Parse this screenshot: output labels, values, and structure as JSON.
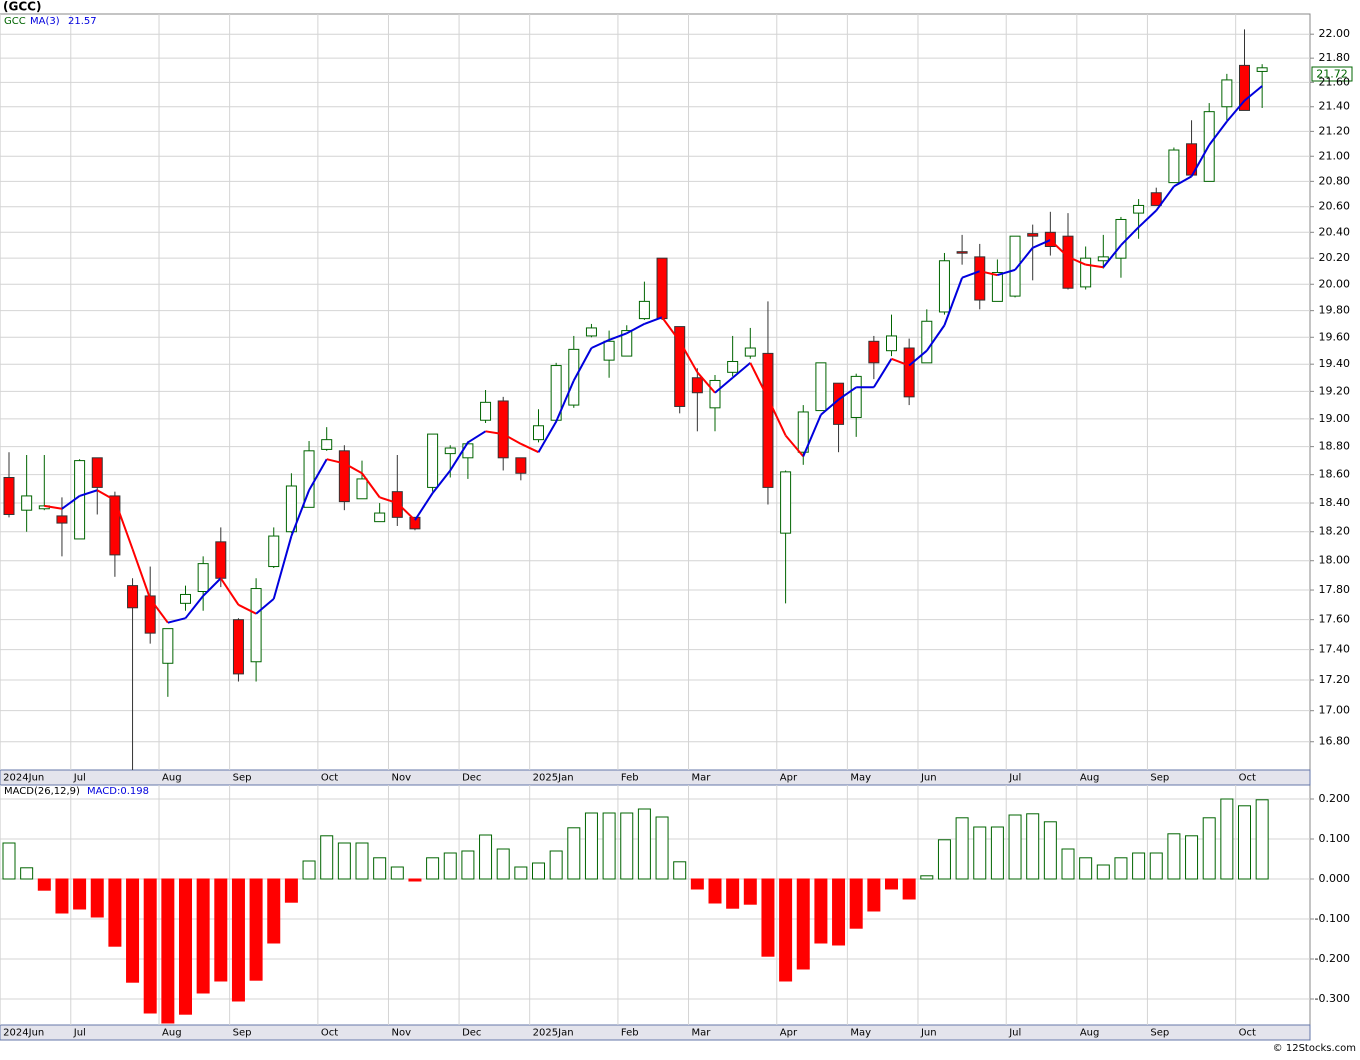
{
  "title": "(GCC)",
  "footer": "© 12Stocks.com",
  "chart_data": [
    {
      "type": "candlestick",
      "symbol": "GCC",
      "log_scale": true,
      "grid": true,
      "up_color": "#006400",
      "down_color": "#ff0000",
      "ylim": [
        16.62,
        22.17
      ],
      "yticks": [
        {
          "value": 16.8,
          "label": "16.80"
        },
        {
          "value": 17.0,
          "label": "17.00"
        },
        {
          "value": 17.2,
          "label": "17.20"
        },
        {
          "value": 17.4,
          "label": "17.40"
        },
        {
          "value": 17.6,
          "label": "17.60"
        },
        {
          "value": 17.8,
          "label": "17.80"
        },
        {
          "value": 18.0,
          "label": "18.00"
        },
        {
          "value": 18.2,
          "label": "18.20"
        },
        {
          "value": 18.4,
          "label": "18.40"
        },
        {
          "value": 18.6,
          "label": "18.60"
        },
        {
          "value": 18.8,
          "label": "18.80"
        },
        {
          "value": 19.0,
          "label": "19.00"
        },
        {
          "value": 19.2,
          "label": "19.20"
        },
        {
          "value": 19.4,
          "label": "19.40"
        },
        {
          "value": 19.6,
          "label": "19.60"
        },
        {
          "value": 19.8,
          "label": "19.80"
        },
        {
          "value": 20.0,
          "label": "20.00"
        },
        {
          "value": 20.2,
          "label": "20.20"
        },
        {
          "value": 20.4,
          "label": "20.40"
        },
        {
          "value": 20.6,
          "label": "20.60"
        },
        {
          "value": 20.8,
          "label": "20.80"
        },
        {
          "value": 21.0,
          "label": "21.00"
        },
        {
          "value": 21.2,
          "label": "21.20"
        },
        {
          "value": 21.4,
          "label": "21.40"
        },
        {
          "value": 21.6,
          "label": "21.60"
        },
        {
          "value": 21.8,
          "label": "21.80"
        },
        {
          "value": 22.0,
          "label": "22.00"
        }
      ],
      "xticks": [
        {
          "value": 0,
          "label": "2024Jun"
        },
        {
          "value": 4,
          "label": "Jul"
        },
        {
          "value": 9,
          "label": "Aug"
        },
        {
          "value": 13,
          "label": "Sep"
        },
        {
          "value": 18,
          "label": "Oct"
        },
        {
          "value": 22,
          "label": "Nov"
        },
        {
          "value": 26,
          "label": "Dec"
        },
        {
          "value": 30,
          "label": "2025Jan"
        },
        {
          "value": 35,
          "label": "Feb"
        },
        {
          "value": 39,
          "label": "Mar"
        },
        {
          "value": 44,
          "label": "Apr"
        },
        {
          "value": 48,
          "label": "May"
        },
        {
          "value": 52,
          "label": "Jun"
        },
        {
          "value": 57,
          "label": "Jul"
        },
        {
          "value": 61,
          "label": "Aug"
        },
        {
          "value": 65,
          "label": "Sep"
        },
        {
          "value": 70,
          "label": "Oct"
        }
      ],
      "open": [
        18.58,
        18.35,
        18.36,
        18.31,
        18.15,
        18.72,
        18.45,
        17.83,
        17.76,
        17.31,
        17.71,
        17.79,
        18.13,
        17.6,
        17.32,
        17.96,
        18.2,
        18.37,
        18.78,
        18.77,
        18.43,
        18.27,
        18.48,
        18.3,
        18.51,
        18.75,
        18.72,
        18.99,
        19.13,
        18.72,
        18.85,
        18.99,
        19.1,
        19.61,
        19.43,
        19.46,
        19.74,
        20.2,
        19.68,
        19.3,
        19.08,
        19.34,
        19.46,
        19.48,
        18.19,
        18.76,
        19.06,
        19.26,
        19.01,
        19.57,
        19.5,
        19.52,
        19.41,
        19.79,
        20.25,
        20.21,
        19.87,
        19.91,
        20.39,
        20.4,
        20.37,
        19.98,
        20.18,
        20.2,
        20.55,
        20.71,
        20.79,
        21.1,
        20.8,
        21.4,
        21.74,
        21.69
      ],
      "high": [
        18.76,
        18.74,
        18.74,
        18.44,
        18.71,
        18.72,
        18.48,
        17.88,
        17.96,
        17.54,
        17.83,
        18.03,
        18.23,
        17.61,
        17.88,
        18.23,
        18.61,
        18.84,
        18.94,
        18.81,
        18.7,
        18.4,
        18.74,
        18.3,
        18.89,
        18.81,
        18.84,
        19.21,
        19.16,
        18.72,
        19.07,
        19.41,
        19.61,
        19.7,
        19.65,
        19.69,
        20.02,
        20.2,
        19.68,
        19.37,
        19.32,
        19.61,
        19.67,
        19.87,
        18.63,
        19.1,
        19.41,
        19.26,
        19.33,
        19.61,
        19.77,
        19.59,
        19.81,
        20.24,
        20.38,
        20.31,
        20.19,
        20.37,
        20.46,
        20.56,
        20.55,
        20.29,
        20.38,
        20.52,
        20.66,
        20.75,
        21.07,
        21.29,
        21.43,
        21.67,
        22.04,
        21.75
      ],
      "low": [
        18.3,
        18.2,
        18.35,
        18.03,
        18.15,
        18.32,
        17.89,
        16.62,
        17.44,
        17.09,
        17.66,
        17.66,
        17.82,
        17.19,
        17.19,
        17.95,
        18.19,
        18.37,
        18.77,
        18.35,
        18.43,
        18.27,
        18.24,
        18.21,
        18.48,
        18.58,
        18.57,
        18.97,
        18.63,
        18.56,
        18.83,
        18.97,
        19.08,
        19.6,
        19.3,
        19.46,
        19.73,
        19.73,
        19.04,
        18.91,
        18.91,
        19.31,
        19.44,
        18.39,
        17.71,
        18.67,
        19.06,
        18.76,
        18.87,
        19.29,
        19.46,
        19.1,
        19.41,
        19.77,
        20.15,
        19.81,
        19.87,
        19.9,
        20.03,
        20.22,
        19.96,
        19.96,
        20.12,
        20.05,
        20.35,
        20.61,
        20.79,
        20.84,
        20.8,
        21.29,
        21.37,
        21.39
      ],
      "close": [
        18.32,
        18.45,
        18.38,
        18.26,
        18.7,
        18.51,
        18.04,
        17.68,
        17.51,
        17.54,
        17.77,
        17.98,
        17.88,
        17.24,
        17.81,
        18.17,
        18.52,
        18.77,
        18.85,
        18.41,
        18.57,
        18.33,
        18.3,
        18.22,
        18.89,
        18.79,
        18.82,
        19.12,
        18.72,
        18.61,
        18.95,
        19.39,
        19.51,
        19.67,
        19.57,
        19.65,
        19.87,
        19.74,
        19.09,
        19.19,
        19.28,
        19.42,
        19.52,
        18.51,
        18.62,
        19.05,
        19.41,
        18.96,
        19.31,
        19.41,
        19.61,
        19.16,
        19.72,
        20.18,
        20.24,
        19.88,
        20.09,
        20.37,
        20.37,
        20.29,
        19.97,
        20.2,
        20.21,
        20.5,
        20.61,
        20.61,
        21.05,
        20.85,
        21.36,
        21.62,
        21.37,
        21.72
      ],
      "ma": {
        "name": "MA(3)",
        "up_color": "#0000dd",
        "down_color": "#ff0000",
        "values": [
          null,
          null,
          18.38,
          18.36,
          18.45,
          18.49,
          18.42,
          18.08,
          17.74,
          17.58,
          17.61,
          17.76,
          17.88,
          17.7,
          17.64,
          17.74,
          18.17,
          18.49,
          18.71,
          18.68,
          18.61,
          18.44,
          18.4,
          18.28,
          18.47,
          18.63,
          18.83,
          18.91,
          18.89,
          18.82,
          18.76,
          18.98,
          19.28,
          19.52,
          19.58,
          19.63,
          19.7,
          19.75,
          19.57,
          19.34,
          19.19,
          19.3,
          19.41,
          19.15,
          18.88,
          18.73,
          19.03,
          19.14,
          19.23,
          19.23,
          19.44,
          19.39,
          19.5,
          19.69,
          20.05,
          20.1,
          20.07,
          20.11,
          20.28,
          20.34,
          20.21,
          20.15,
          20.13,
          20.3,
          20.44,
          20.57,
          20.76,
          20.84,
          21.09,
          21.28,
          21.45,
          21.57
        ]
      }
    },
    {
      "type": "bar",
      "name": "MACD(26,12,9)",
      "value_label": "MACD:0.198",
      "grid": true,
      "up_color": "#006400",
      "down_color": "#ff0000",
      "ylim": [
        -0.365,
        0.235
      ],
      "yticks": [
        {
          "value": -0.3,
          "label": "-0.300"
        },
        {
          "value": -0.2,
          "label": "-0.200"
        },
        {
          "value": -0.1,
          "label": "-0.100"
        },
        {
          "value": 0,
          "label": "0.000"
        },
        {
          "value": 0.1,
          "label": "0.100"
        },
        {
          "value": 0.2,
          "label": "0.200"
        }
      ],
      "values": [
        0.09,
        0.028,
        -0.028,
        -0.085,
        -0.075,
        -0.095,
        -0.168,
        -0.258,
        -0.335,
        -0.36,
        -0.338,
        -0.285,
        -0.255,
        -0.305,
        -0.253,
        -0.16,
        -0.058,
        0.045,
        0.108,
        0.09,
        0.09,
        0.053,
        0.03,
        -0.005,
        0.053,
        0.065,
        0.07,
        0.11,
        0.075,
        0.03,
        0.04,
        0.07,
        0.128,
        0.165,
        0.165,
        0.165,
        0.175,
        0.155,
        0.043,
        -0.025,
        -0.06,
        -0.073,
        -0.063,
        -0.193,
        -0.255,
        -0.225,
        -0.16,
        -0.165,
        -0.123,
        -0.08,
        -0.025,
        -0.05,
        0.008,
        0.098,
        0.153,
        0.13,
        0.13,
        0.16,
        0.163,
        0.143,
        0.075,
        0.053,
        0.035,
        0.053,
        0.065,
        0.065,
        0.113,
        0.108,
        0.153,
        0.2,
        0.183,
        0.198
      ]
    }
  ]
}
